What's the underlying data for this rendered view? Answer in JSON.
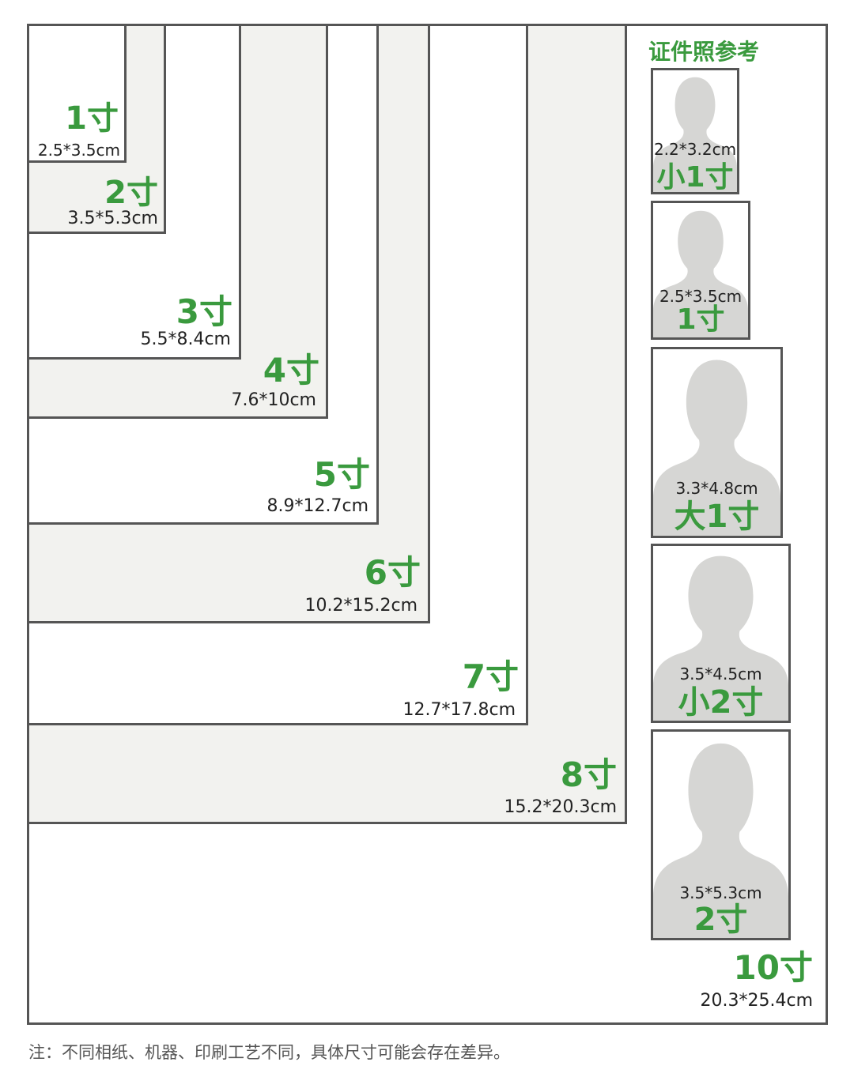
{
  "reference_title": "证件照参考",
  "sizes": [
    {
      "name": "1寸",
      "dim": "2.5*3.5cm"
    },
    {
      "name": "2寸",
      "dim": "3.5*5.3cm"
    },
    {
      "name": "3寸",
      "dim": "5.5*8.4cm"
    },
    {
      "name": "4寸",
      "dim": "7.6*10cm"
    },
    {
      "name": "5寸",
      "dim": "8.9*12.7cm"
    },
    {
      "name": "6寸",
      "dim": "10.2*15.2cm"
    },
    {
      "name": "7寸",
      "dim": "12.7*17.8cm"
    },
    {
      "name": "8寸",
      "dim": "15.2*20.3cm"
    },
    {
      "name": "10寸",
      "dim": "20.3*25.4cm"
    }
  ],
  "id_photos": [
    {
      "name": "小1寸",
      "dim": "2.2*3.2cm"
    },
    {
      "name": "1寸",
      "dim": "2.5*3.5cm"
    },
    {
      "name": "大1寸",
      "dim": "3.3*4.8cm"
    },
    {
      "name": "小2寸",
      "dim": "3.5*4.5cm"
    },
    {
      "name": "2寸",
      "dim": "3.5*5.3cm"
    }
  ],
  "note": "注：不同相纸、机器、印刷工艺不同，具体尺寸可能会存在差异。",
  "colors": {
    "accent_green": "#3a9a3e",
    "border": "#555555",
    "panel": "#f2f2ef",
    "silhouette": "#d6d6d4"
  }
}
